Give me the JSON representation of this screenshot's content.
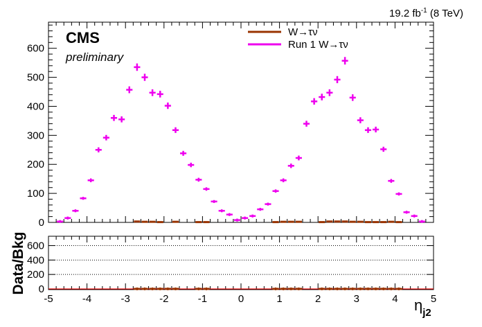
{
  "header": {
    "lumi_value": "19.2 fb",
    "lumi_exp": "-1",
    "lumi_energy": " (8 TeV)",
    "experiment": "CMS",
    "status": "preliminary"
  },
  "legend": [
    {
      "label": "W→τν",
      "color": "#993300"
    },
    {
      "label": "Run 1 W→τν",
      "color": "#ee00ee"
    }
  ],
  "chart_data": [
    {
      "type": "scatter",
      "panel": "main",
      "xlim": [
        -5,
        5
      ],
      "ylim": [
        0,
        690
      ],
      "yticks": [
        0,
        100,
        200,
        300,
        400,
        500,
        600
      ],
      "xticks": [
        -5,
        -4,
        -3,
        -2,
        -1,
        0,
        1,
        2,
        3,
        4,
        5
      ],
      "xlabel_main": "η",
      "xlabel_sub": "j2",
      "bin_width": 0.2,
      "series": [
        {
          "name": "Run 1 W→τν",
          "color": "#ee00ee",
          "x": [
            -4.7,
            -4.5,
            -4.3,
            -4.1,
            -3.9,
            -3.7,
            -3.5,
            -3.3,
            -3.1,
            -2.9,
            -2.7,
            -2.5,
            -2.3,
            -2.1,
            -1.9,
            -1.7,
            -1.5,
            -1.3,
            -1.1,
            -0.9,
            -0.7,
            -0.5,
            -0.3,
            -0.1,
            0.1,
            0.3,
            0.5,
            0.7,
            0.9,
            1.1,
            1.3,
            1.5,
            1.7,
            1.9,
            2.1,
            2.3,
            2.5,
            2.7,
            2.9,
            3.1,
            3.3,
            3.5,
            3.7,
            3.9,
            4.1,
            4.3,
            4.5,
            4.7
          ],
          "values": [
            3,
            15,
            40,
            83,
            145,
            250,
            292,
            360,
            355,
            457,
            535,
            500,
            447,
            442,
            402,
            318,
            238,
            198,
            147,
            115,
            72,
            40,
            27,
            8,
            15,
            22,
            45,
            63,
            108,
            145,
            195,
            222,
            340,
            417,
            432,
            447,
            492,
            557,
            430,
            352,
            318,
            320,
            252,
            143,
            98,
            35,
            22,
            3
          ]
        },
        {
          "name": "W→τν",
          "color": "#993300",
          "x": [
            -2.7,
            -2.5,
            -2.3,
            -2.1,
            -1.7,
            -1.1,
            -0.9,
            0.9,
            1.1,
            1.3,
            1.5,
            2.1,
            2.3,
            2.5,
            2.7,
            2.9,
            3.1,
            3.3,
            3.5,
            3.7,
            3.9,
            4.1
          ],
          "values": [
            3,
            2,
            2,
            1,
            2,
            1,
            1,
            1,
            2,
            2,
            2,
            1,
            3,
            3,
            3,
            2,
            2,
            1,
            1,
            1,
            2,
            1
          ]
        }
      ]
    },
    {
      "type": "scatter",
      "panel": "ratio",
      "ylabel": "Data/Bkg",
      "xlim": [
        -5,
        5
      ],
      "ylim": [
        -10,
        730
      ],
      "yticks": [
        0,
        200,
        400,
        600
      ],
      "grid": "dotted",
      "series": [
        {
          "name": "ratio",
          "color": "#993300",
          "x": [
            -2.7,
            -2.5,
            -2.3,
            -2.1,
            -1.9,
            -1.7,
            -1.1,
            -0.9,
            0.9,
            1.1,
            1.3,
            1.5,
            2.1,
            2.3,
            2.5,
            2.7,
            2.9,
            3.1,
            3.3,
            3.5,
            3.7,
            3.9,
            4.1
          ],
          "values": [
            0,
            0,
            0,
            0,
            0,
            0,
            0,
            0,
            0,
            0,
            0,
            0,
            0,
            0,
            0,
            0,
            0,
            0,
            0,
            0,
            0,
            0,
            0
          ]
        }
      ]
    }
  ]
}
